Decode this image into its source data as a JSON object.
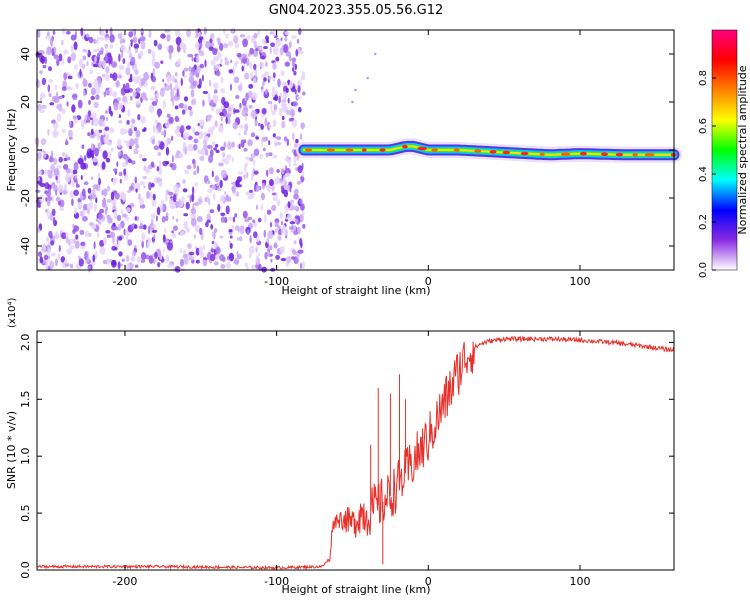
{
  "title": "GN04.2023.355.05.56.G12",
  "chart_data": [
    {
      "type": "heatmap",
      "xlabel": "Height of straight line (km)",
      "ylabel": "Frequency (Hz)",
      "xlim": [
        -258,
        162
      ],
      "ylim": [
        -50,
        50
      ],
      "x_ticks": [
        -200,
        -100,
        0,
        100
      ],
      "y_ticks": [
        -40,
        -20,
        0,
        20,
        40
      ],
      "colorbar": {
        "label": "Normalized spectral amplitude",
        "range": [
          0,
          1
        ],
        "ticks": [
          "0.0",
          "0.2",
          "0.4",
          "0.6",
          "0.8"
        ],
        "colors": [
          "#ffffff",
          "#8a2be2",
          "#0000ff",
          "#00ffff",
          "#00ff00",
          "#ffff00",
          "#ff8000",
          "#ff0000",
          "#ff0080"
        ]
      },
      "noise_region_x": [
        -258,
        -82
      ],
      "signal_start_x": -82,
      "signal_line": {
        "x": [
          -82,
          -60,
          -40,
          -25,
          -15,
          -10,
          0,
          20,
          50,
          80,
          100,
          130,
          162
        ],
        "frequency": [
          0,
          0,
          0,
          0,
          1.5,
          1.5,
          0,
          0,
          -1,
          -2,
          -1.5,
          -2,
          -2
        ]
      },
      "outliers": [
        {
          "x": -50,
          "y": 20
        },
        {
          "x": -48,
          "y": 25
        },
        {
          "x": -40,
          "y": 30
        },
        {
          "x": -35,
          "y": 40
        }
      ]
    },
    {
      "type": "line",
      "xlabel": "Height of straight line (km)",
      "ylabel": "SNR (10 * v/v)",
      "y_multiplier": "(x10⁴)",
      "xlim": [
        -258,
        162
      ],
      "ylim": [
        0,
        2.1
      ],
      "x_ticks": [
        -200,
        -100,
        0,
        100
      ],
      "y_ticks": [
        "0.0",
        "0.5",
        "1.0",
        "1.5",
        "2.0"
      ],
      "series": [
        {
          "color": "#e8302a",
          "x": [
            -258,
            -180,
            -100,
            -70,
            -65,
            -63,
            -60,
            -55,
            -50,
            -45,
            -40,
            -35,
            -30,
            -25,
            -20,
            -15,
            -10,
            -5,
            0,
            5,
            10,
            15,
            20,
            25,
            30,
            35,
            40,
            50,
            60,
            80,
            100,
            120,
            140,
            162
          ],
          "y": [
            0.03,
            0.03,
            0.02,
            0.03,
            0.1,
            0.4,
            0.45,
            0.45,
            0.4,
            0.5,
            0.5,
            0.55,
            0.6,
            0.65,
            0.75,
            0.85,
            0.95,
            1.05,
            1.15,
            1.3,
            1.45,
            1.6,
            1.75,
            1.88,
            1.95,
            1.99,
            2.01,
            2.03,
            2.03,
            2.03,
            2.02,
            2.0,
            1.97,
            1.93
          ]
        }
      ],
      "spikes": [
        {
          "x": -33,
          "y": 1.6
        },
        {
          "x": -25,
          "y": 1.55
        },
        {
          "x": -19,
          "y": 1.72
        },
        {
          "x": -15,
          "y": 1.5
        },
        {
          "x": -38,
          "y": 1.1
        },
        {
          "x": -30,
          "y": 0.05
        }
      ]
    }
  ]
}
